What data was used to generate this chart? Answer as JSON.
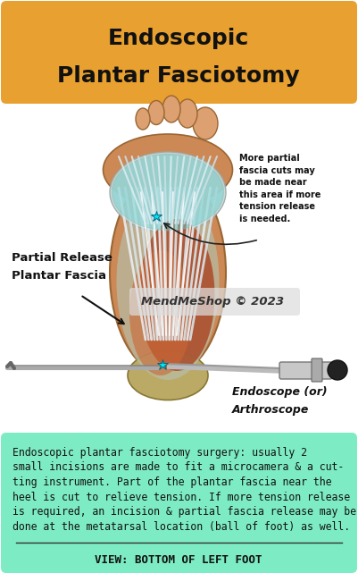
{
  "title_line1": "Endoscopic",
  "title_line2": "Plantar Fasciotomy",
  "title_bg": "#E8A030",
  "title_color": "#111111",
  "body_bg": "#ffffff",
  "bottom_bg": "#7DECC4",
  "border_color": "#555555",
  "bottom_text_lines": [
    "Endoscopic plantar fasciotomy surgery: usually 2",
    "small incisions are made to fit a microcamera & a cut-",
    "ting instrument. Part of the plantar fascia near the",
    "heel is cut to relieve tension. If more tension release",
    "is required, an incision & partial fascia release may be",
    "done at the metatarsal location (ball of foot) as well."
  ],
  "bottom_label": "VIEW: BOTTOM OF LEFT FOOT",
  "label_partial_line1": "Partial Release",
  "label_partial_line2": "Plantar Fascia",
  "label_endoscope_line1": "Endoscope (or)",
  "label_endoscope_line2": "Arthroscope",
  "label_morefascia": "More partial\nfascia cuts may\nbe made near\nthis area if more\ntension release\nis needed.",
  "label_mendme": "MendMeShop © 2023",
  "cyan_color": "#00E5EE",
  "skin_light": "#DDA070",
  "skin_mid": "#CC8855",
  "skin_dark": "#BB7744",
  "heel_color": "#BBAA66",
  "fascia_bg": "#C8D4D0",
  "muscle_red": "#AA4422",
  "muscle_mid": "#CC6633",
  "white_strand": "#E8EEF0",
  "cyan_bg": "#60CCCC"
}
